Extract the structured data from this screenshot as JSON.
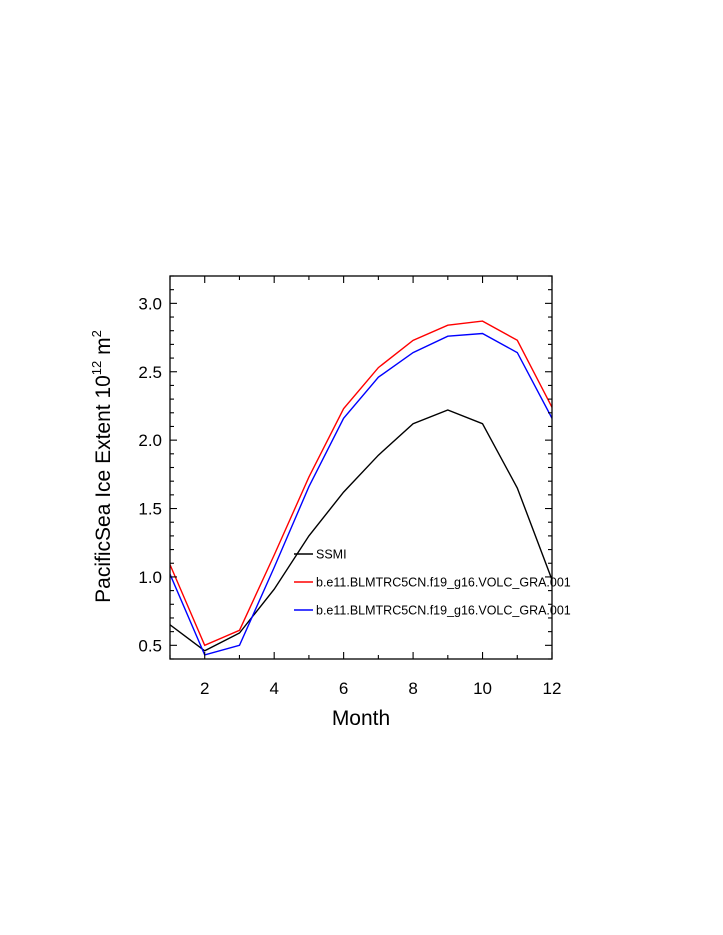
{
  "chart_data": {
    "type": "line",
    "title": "",
    "xlabel": "Month",
    "ylabel": {
      "prefix": "PacificSea Ice Extent 10",
      "sup1": "12",
      "unit": " m",
      "sup2": "2"
    },
    "xlim": [
      1,
      12
    ],
    "ylim": [
      0.4,
      3.2
    ],
    "xticks": [
      2,
      4,
      6,
      8,
      10,
      12
    ],
    "xtick_labels": [
      "2",
      "4",
      "6",
      "8",
      "10",
      "12"
    ],
    "yticks": [
      0.5,
      1.0,
      1.5,
      2.0,
      2.5,
      3.0
    ],
    "ytick_labels": [
      "0.5",
      "1.0",
      "1.5",
      "2.0",
      "2.5",
      "3.0"
    ],
    "grid": false,
    "legend_position": "lower-center inside plot",
    "x": [
      1,
      2,
      3,
      4,
      5,
      6,
      7,
      8,
      9,
      10,
      11,
      12
    ],
    "series": [
      {
        "name": "SSMI",
        "color": "#000000",
        "values": [
          0.65,
          0.46,
          0.59,
          0.91,
          1.3,
          1.62,
          1.89,
          2.12,
          2.22,
          2.12,
          1.65,
          0.98
        ]
      },
      {
        "name": "b.e11.BLMTRC5CN.f19_g16.VOLC_GRA.001",
        "color": "#ff0000",
        "values": [
          1.09,
          0.5,
          0.61,
          1.16,
          1.73,
          2.23,
          2.53,
          2.73,
          2.84,
          2.87,
          2.73,
          2.24
        ]
      },
      {
        "name": "b.e11.BLMTRC5CN.f19_g16.VOLC_GRA.001",
        "color": "#0000ff",
        "values": [
          1.02,
          0.43,
          0.5,
          1.07,
          1.66,
          2.16,
          2.46,
          2.64,
          2.76,
          2.78,
          2.64,
          2.16
        ]
      }
    ]
  }
}
